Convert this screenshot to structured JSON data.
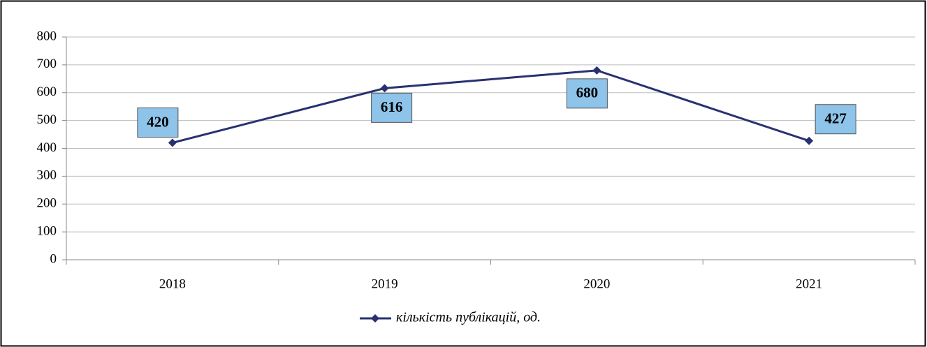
{
  "chart_data": {
    "type": "line",
    "categories": [
      "2018",
      "2019",
      "2020",
      "2021"
    ],
    "series": [
      {
        "name": "кількість публікацій, од.",
        "color": "#283271",
        "values": [
          420,
          616,
          680,
          427
        ]
      }
    ],
    "ylim": [
      0,
      800
    ],
    "yticks": [
      0,
      100,
      200,
      300,
      400,
      500,
      600,
      700,
      800
    ],
    "grid": true,
    "label_color": "#8ec3ea",
    "legend": "bottom"
  }
}
